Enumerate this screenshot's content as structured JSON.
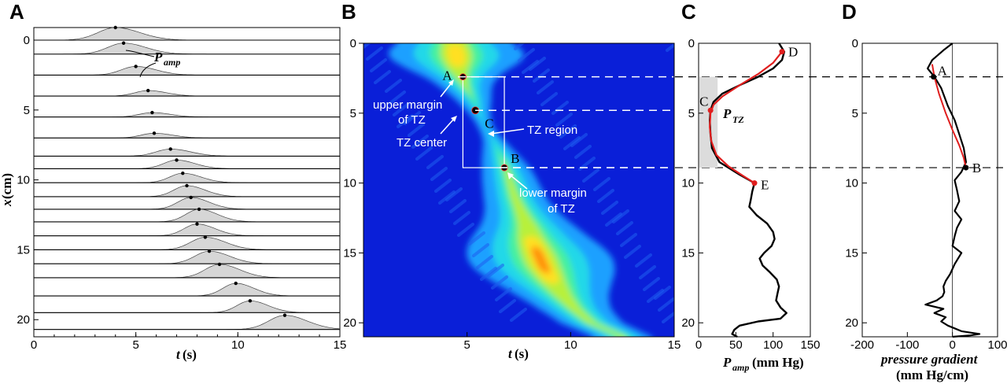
{
  "panel_labels": [
    "A",
    "B",
    "C",
    "D"
  ],
  "colors": {
    "red_fit": "#e01e1e",
    "trace_fill": "#d6d6d6",
    "tz_band": "#dcdcdc"
  },
  "chart_data": [
    {
      "panel": "A",
      "type": "area",
      "xlabel_var": "t",
      "xlabel_unit": " (s)",
      "ylabel_var": "x",
      "ylabel_unit": " (cm)",
      "xlim": [
        0,
        15
      ],
      "ylim": [
        0,
        21
      ],
      "xticks": [
        0,
        5,
        10,
        15
      ],
      "yticks": [
        0,
        5,
        10,
        15,
        20
      ],
      "annotation": {
        "base": "P",
        "sub": "amp"
      },
      "traces": [
        {
          "x": 0,
          "peak_t": 4.0,
          "amp": 0.8,
          "width": 1.2
        },
        {
          "x": 1,
          "peak_t": 4.4,
          "amp": 0.7,
          "width": 1.1
        },
        {
          "x": 2.5,
          "peak_t": 5.0,
          "amp": 0.55,
          "width": 1.0
        },
        {
          "x": 4,
          "peak_t": 5.6,
          "amp": 0.35,
          "width": 0.9
        },
        {
          "x": 5.5,
          "peak_t": 5.8,
          "amp": 0.28,
          "width": 0.9
        },
        {
          "x": 7,
          "peak_t": 5.9,
          "amp": 0.3,
          "width": 0.9
        },
        {
          "x": 8.3,
          "peak_t": 6.7,
          "amp": 0.45,
          "width": 1.0
        },
        {
          "x": 9.2,
          "peak_t": 7.0,
          "amp": 0.55,
          "width": 0.9
        },
        {
          "x": 10.2,
          "peak_t": 7.3,
          "amp": 0.6,
          "width": 0.9
        },
        {
          "x": 11.2,
          "peak_t": 7.5,
          "amp": 0.7,
          "width": 0.9
        },
        {
          "x": 12.1,
          "peak_t": 7.7,
          "amp": 0.75,
          "width": 0.9
        },
        {
          "x": 13.0,
          "peak_t": 8.1,
          "amp": 0.8,
          "width": 0.9
        },
        {
          "x": 14.0,
          "peak_t": 8.0,
          "amp": 0.75,
          "width": 0.9
        },
        {
          "x": 15.0,
          "peak_t": 8.4,
          "amp": 0.8,
          "width": 1.0
        },
        {
          "x": 16.0,
          "peak_t": 8.6,
          "amp": 0.8,
          "width": 1.0
        },
        {
          "x": 17.0,
          "peak_t": 9.1,
          "amp": 0.85,
          "width": 1.0
        },
        {
          "x": 18.3,
          "peak_t": 9.9,
          "amp": 0.8,
          "width": 0.9
        },
        {
          "x": 19.5,
          "peak_t": 10.6,
          "amp": 0.75,
          "width": 0.9
        },
        {
          "x": 20.7,
          "peak_t": 12.3,
          "amp": 0.9,
          "width": 1.1
        }
      ]
    },
    {
      "panel": "B",
      "type": "heatmap",
      "xlabel_var": "t",
      "xlabel_unit": " (s)",
      "xlim": [
        0,
        15
      ],
      "ylim": [
        0,
        21
      ],
      "xticks": [
        5,
        10,
        15
      ],
      "yticks": [
        0,
        5,
        10,
        15,
        20
      ],
      "ridge": [
        [
          0,
          4.4
        ],
        [
          1,
          4.5
        ],
        [
          2,
          4.6
        ],
        [
          3,
          4.9
        ],
        [
          4,
          5.3
        ],
        [
          5,
          5.6
        ],
        [
          6,
          5.9
        ],
        [
          7,
          6.3
        ],
        [
          8,
          6.6
        ],
        [
          9,
          6.9
        ],
        [
          10,
          7.1
        ],
        [
          11,
          7.3
        ],
        [
          12,
          7.6
        ],
        [
          13,
          7.9
        ],
        [
          14,
          8.1
        ],
        [
          15,
          8.4
        ],
        [
          16,
          8.7
        ],
        [
          17,
          9.1
        ],
        [
          18,
          9.6
        ],
        [
          19,
          10.2
        ],
        [
          20,
          11.0
        ],
        [
          21,
          12.5
        ]
      ],
      "points": [
        {
          "label": "A",
          "t": 4.8,
          "x": 2.4
        },
        {
          "label": "C",
          "t": 5.4,
          "x": 4.8
        },
        {
          "label": "B",
          "t": 6.8,
          "x": 8.9
        }
      ],
      "tz_box": {
        "t0": 4.8,
        "t1": 6.8,
        "x0": 2.4,
        "x1": 8.9
      },
      "annotations": [
        {
          "text": "upper margin",
          "line": 1
        },
        {
          "text": "of TZ",
          "line": 2
        },
        {
          "text": "TZ center",
          "line": 3
        },
        {
          "text": "TZ region",
          "line": 4
        },
        {
          "text": "lower margin",
          "line": 5
        },
        {
          "text": "of TZ",
          "line": 6
        }
      ]
    },
    {
      "panel": "C",
      "type": "line",
      "xlabel_base": "P",
      "xlabel_sub": "amp",
      "xlabel_unit": " (mm Hg)",
      "xlim": [
        0,
        150
      ],
      "ylim": [
        0,
        21
      ],
      "xticks": [
        0,
        50,
        100,
        150
      ],
      "yticks": [
        0,
        5,
        10,
        15,
        20
      ],
      "series": [
        {
          "color": "black",
          "x": [
            108,
            115,
            112,
            100,
            80,
            55,
            32,
            20,
            16,
            15,
            16,
            18,
            28,
            55,
            75,
            72,
            70,
            68,
            78,
            92,
            100,
            102,
            98,
            88,
            82,
            86,
            96,
            105,
            108,
            106,
            104,
            110,
            118,
            110,
            80,
            55,
            48,
            45,
            52
          ],
          "y": [
            0,
            0.6,
            1.2,
            1.8,
            2.4,
            3.0,
            3.6,
            4.2,
            4.8,
            5.5,
            6.5,
            7.5,
            8.5,
            9.4,
            10.0,
            10.6,
            11.2,
            11.7,
            12.3,
            12.9,
            13.5,
            14.0,
            14.5,
            15.0,
            15.4,
            15.9,
            16.4,
            16.9,
            17.4,
            17.9,
            18.4,
            18.9,
            19.3,
            19.7,
            19.9,
            20.2,
            20.5,
            20.8,
            21.0
          ]
        },
        {
          "color": "red",
          "x": [
            112,
            100,
            80,
            55,
            32,
            20,
            16,
            15,
            17,
            24,
            40,
            60,
            75
          ],
          "y": [
            0.6,
            1.4,
            2.2,
            3.0,
            3.8,
            4.4,
            5.0,
            6.0,
            7.0,
            8.0,
            8.8,
            9.5,
            10.0
          ]
        }
      ],
      "band": {
        "x0": 2.4,
        "x1": 8.9
      },
      "points": [
        {
          "label": "D",
          "p": 112,
          "x": 0.6
        },
        {
          "label": "C",
          "p": 16,
          "x": 4.8
        },
        {
          "label": "E",
          "p": 75,
          "x": 10.0
        }
      ],
      "ptz_label": {
        "base": "P",
        "sub": "TZ"
      }
    },
    {
      "panel": "D",
      "type": "line",
      "xlabel_line1": "pressure gradient",
      "xlabel_line2": "(mm Hg/cm)",
      "xlim": [
        -200,
        100
      ],
      "ylim": [
        0,
        21
      ],
      "xticks": [
        -200,
        -100,
        0,
        100
      ],
      "yticks": [
        0,
        5,
        10,
        15,
        20
      ],
      "series": [
        {
          "color": "black",
          "x": [
            0,
            -20,
            -45,
            -55,
            -40,
            -25,
            -10,
            5,
            15,
            25,
            30,
            20,
            5,
            10,
            15,
            5,
            20,
            10,
            5,
            0,
            20,
            5,
            -5,
            -15,
            -20,
            -18,
            -22,
            -35,
            -60,
            -20,
            -40,
            -15,
            -25,
            -10,
            5,
            20,
            60,
            40,
            0
          ],
          "y": [
            0,
            0.5,
            1.2,
            1.8,
            2.4,
            3.2,
            4.5,
            5.5,
            6.5,
            7.5,
            8.5,
            9.2,
            9.8,
            10.5,
            11.3,
            12.0,
            12.6,
            13.2,
            13.8,
            14.5,
            15.0,
            15.8,
            16.5,
            17.0,
            17.4,
            17.8,
            18.1,
            18.4,
            18.7,
            19.0,
            19.3,
            19.6,
            19.9,
            20.2,
            20.4,
            20.6,
            20.8,
            20.9,
            21.0
          ]
        },
        {
          "color": "red",
          "x": [
            -45,
            -40,
            -30,
            -15,
            0,
            15,
            25,
            30
          ],
          "y": [
            1.5,
            2.4,
            3.6,
            5.0,
            6.2,
            7.3,
            8.2,
            8.9
          ]
        }
      ],
      "points": [
        {
          "label": "A",
          "g": -42,
          "x": 2.4
        },
        {
          "label": "B",
          "g": 30,
          "x": 8.9
        }
      ]
    }
  ]
}
